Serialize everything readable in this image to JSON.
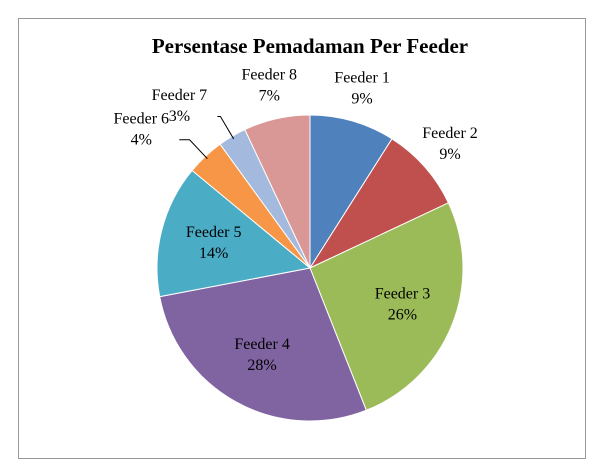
{
  "chart_data": {
    "type": "pie",
    "title": "Persentase Pemadaman Per Feeder",
    "categories": [
      "Feeder 1",
      "Feeder 2",
      "Feeder 3",
      "Feeder 4",
      "Feeder 5",
      "Feeder 6",
      "Feeder 7",
      "Feeder 8"
    ],
    "values": [
      9,
      9,
      26,
      28,
      14,
      4,
      3,
      7
    ],
    "value_labels": [
      "9%",
      "9%",
      "26%",
      "28%",
      "14%",
      "4%",
      "3%",
      "7%"
    ],
    "colors": [
      "#4f81bd",
      "#c0504d",
      "#9bbb59",
      "#8064a2",
      "#4bacc6",
      "#f79646",
      "#a3b9dd",
      "#d99795"
    ]
  }
}
